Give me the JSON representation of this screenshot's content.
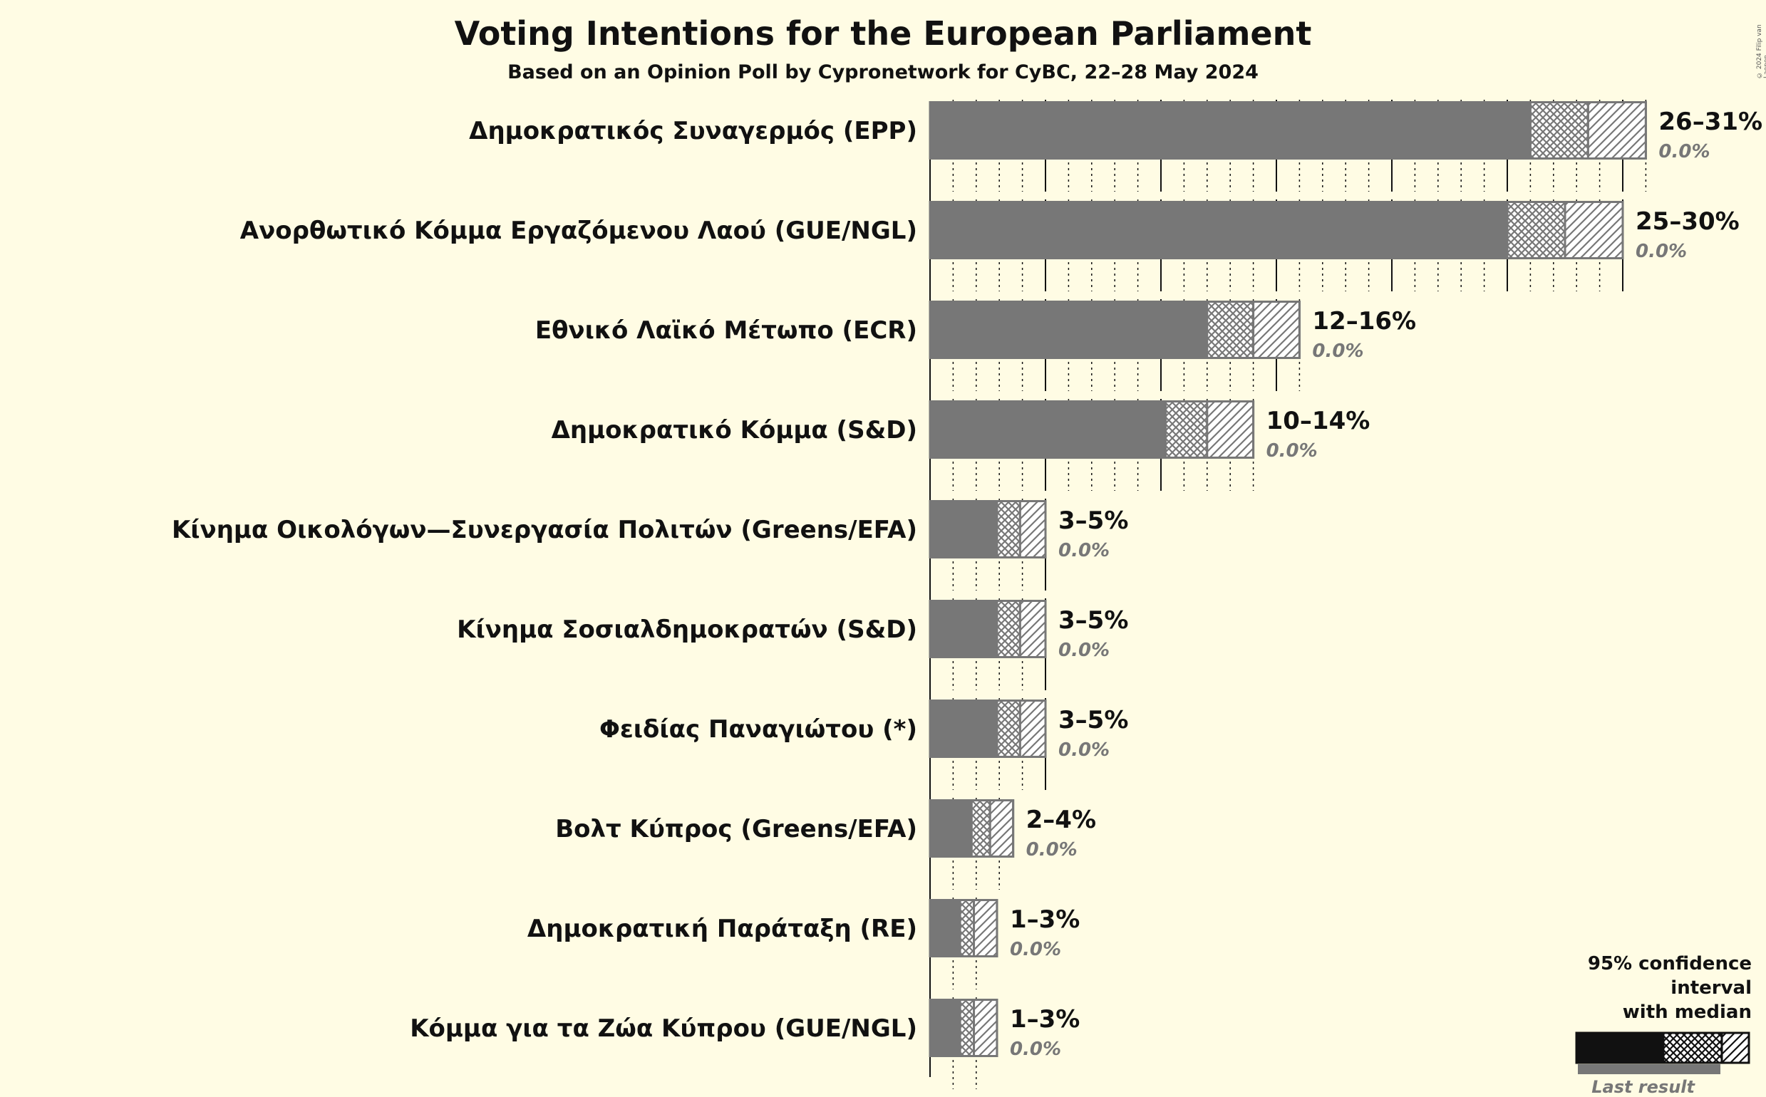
{
  "title": "Voting Intentions for the European Parliament",
  "subtitle": "Based on an Opinion Poll by Cypronetwork for CyBC, 22–28 May 2024",
  "copyright": "© 2024 Filip van Laenen",
  "legend": {
    "title_line1": "95% confidence interval",
    "title_line2": "with median",
    "last_result": "Last result"
  },
  "colors": {
    "background": "#FFFCE4",
    "bar": "#777777",
    "legend_bar": "#111111"
  },
  "chart_data": {
    "type": "bar",
    "orientation": "horizontal",
    "title": "Voting Intentions for the European Parliament",
    "subtitle": "Based on an Opinion Poll by Cypronetwork for CyBC, 22–28 May 2024",
    "xlim": [
      0,
      32
    ],
    "grid": true,
    "legend_position": "bottom-right",
    "series": [
      {
        "name": "Δημοκρατικός Συναγερμός (EPP)",
        "lower": 26,
        "median": 28.5,
        "upper": 31,
        "range_label": "26–31%",
        "last_result_label": "0.0%",
        "last_result": 0
      },
      {
        "name": "Ανορθωτικό Κόμμα Εργαζόμενου Λαού (GUE/NGL)",
        "lower": 25,
        "median": 27.5,
        "upper": 30,
        "range_label": "25–30%",
        "last_result_label": "0.0%",
        "last_result": 0
      },
      {
        "name": "Εθνικό Λαϊκό Μέτωπο (ECR)",
        "lower": 12,
        "median": 14,
        "upper": 16,
        "range_label": "12–16%",
        "last_result_label": "0.0%",
        "last_result": 0
      },
      {
        "name": "Δημοκρατικό Κόμμα (S&D)",
        "lower": 10.2,
        "median": 12,
        "upper": 14,
        "range_label": "10–14%",
        "last_result_label": "0.0%",
        "last_result": 0
      },
      {
        "name": "Κίνημα Οικολόγων—Συνεργασία Πολιτών (Greens/EFA)",
        "lower": 2.9,
        "median": 3.9,
        "upper": 5,
        "range_label": "3–5%",
        "last_result_label": "0.0%",
        "last_result": 0
      },
      {
        "name": "Κίνημα Σοσιαλδημοκρατών (S&D)",
        "lower": 2.9,
        "median": 3.9,
        "upper": 5,
        "range_label": "3–5%",
        "last_result_label": "0.0%",
        "last_result": 0
      },
      {
        "name": "Φειδίας Παναγιώτου (*)",
        "lower": 2.9,
        "median": 3.9,
        "upper": 5,
        "range_label": "3–5%",
        "last_result_label": "0.0%",
        "last_result": 0
      },
      {
        "name": "Βολτ Κύπρος (Greens/EFA)",
        "lower": 1.8,
        "median": 2.6,
        "upper": 3.6,
        "range_label": "2–4%",
        "last_result_label": "0.0%",
        "last_result": 0
      },
      {
        "name": "Δημοκρατική Παράταξη (RE)",
        "lower": 1.3,
        "median": 1.9,
        "upper": 2.9,
        "range_label": "1–3%",
        "last_result_label": "0.0%",
        "last_result": 0
      },
      {
        "name": "Κόμμα για τα Ζώα Κύπρου (GUE/NGL)",
        "lower": 1.3,
        "median": 1.9,
        "upper": 2.9,
        "range_label": "1–3%",
        "last_result_label": "0.0%",
        "last_result": 0
      }
    ]
  }
}
